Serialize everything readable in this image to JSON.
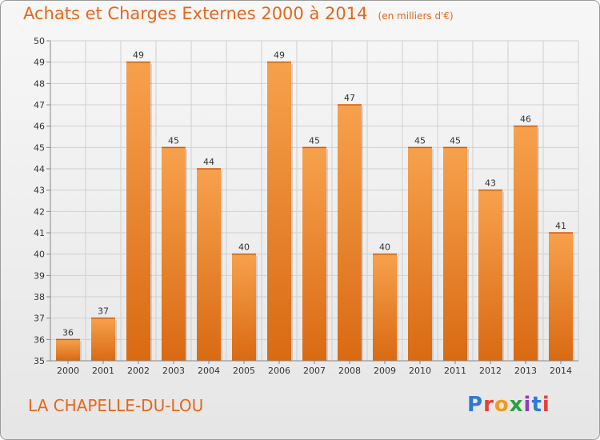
{
  "header": {
    "title": "Achats et Charges Externes 2000 à 2014",
    "unit": "(en milliers d'€)"
  },
  "footer": {
    "commune": "LA CHAPELLE-DU-LOU",
    "logo": "Proxiti"
  },
  "colors": {
    "bar_light": "#f7a14d",
    "bar_dark": "#d96a12",
    "title": "#e8661a",
    "grid": "#d0d0d0"
  },
  "chart_data": {
    "type": "bar",
    "title": "Achats et Charges Externes 2000 à 2014",
    "subtitle": "(en milliers d'€)",
    "categories": [
      "2000",
      "2001",
      "2002",
      "2003",
      "2004",
      "2005",
      "2006",
      "2007",
      "2008",
      "2009",
      "2010",
      "2011",
      "2012",
      "2013",
      "2014"
    ],
    "values": [
      36,
      37,
      49,
      45,
      44,
      40,
      49,
      45,
      47,
      40,
      45,
      45,
      43,
      46,
      41
    ],
    "ylim": [
      35,
      50
    ],
    "yticks": [
      35,
      36,
      37,
      38,
      39,
      40,
      41,
      42,
      43,
      44,
      45,
      46,
      47,
      48,
      49,
      50
    ],
    "grid": true,
    "legend": "none"
  }
}
